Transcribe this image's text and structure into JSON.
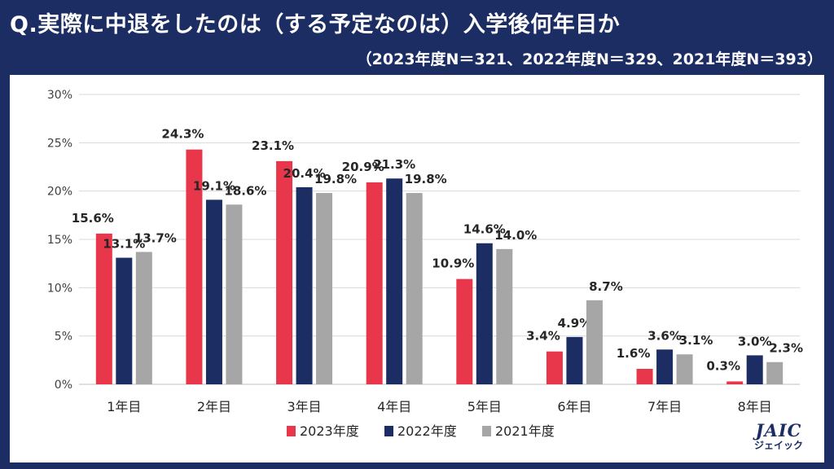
{
  "title": "Q.実際に中退をしたのは（する予定なのは）入学後何年目か",
  "subtitle": "（2023年度N＝321、2022年度N＝329、2021年度N＝393）",
  "logo": {
    "main": "JAIC",
    "sub": "ジェイック"
  },
  "chart_data": {
    "type": "bar",
    "categories": [
      "1年目",
      "2年目",
      "3年目",
      "4年目",
      "5年目",
      "6年目",
      "7年目",
      "8年目"
    ],
    "series": [
      {
        "name": "2023年度",
        "color": "#e8374a",
        "values": [
          15.6,
          24.3,
          23.1,
          20.9,
          10.9,
          3.4,
          1.6,
          0.3
        ]
      },
      {
        "name": "2022年度",
        "color": "#1b2d63",
        "values": [
          13.1,
          19.1,
          20.4,
          21.3,
          14.6,
          4.9,
          3.6,
          3.0
        ]
      },
      {
        "name": "2021年度",
        "color": "#a6a6a6",
        "values": [
          13.7,
          18.6,
          19.8,
          19.8,
          14.0,
          8.7,
          3.1,
          2.3
        ]
      }
    ],
    "ylim": [
      0,
      30
    ],
    "yticks": [
      0,
      5,
      10,
      15,
      20,
      25,
      30
    ],
    "ytick_labels": [
      "0%",
      "5%",
      "10%",
      "15%",
      "20%",
      "25%",
      "30%"
    ],
    "value_suffix": "%",
    "grid": true,
    "legend_position": "bottom"
  }
}
